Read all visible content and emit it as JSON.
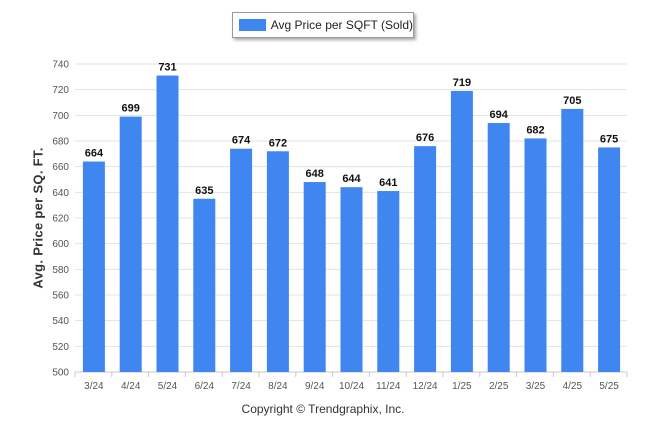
{
  "chart_data": {
    "type": "bar",
    "categories": [
      "3/24",
      "4/24",
      "5/24",
      "6/24",
      "7/24",
      "8/24",
      "9/24",
      "10/24",
      "11/24",
      "12/24",
      "1/25",
      "2/25",
      "3/25",
      "4/25",
      "5/25"
    ],
    "series": [
      {
        "name": "Avg Price per SQFT (Sold)",
        "values": [
          664,
          699,
          731,
          635,
          674,
          672,
          648,
          644,
          641,
          676,
          719,
          694,
          682,
          705,
          675
        ]
      }
    ],
    "title": "",
    "xlabel": "",
    "ylabel": "Avg. Price per SQ. FT.",
    "ylim": [
      500,
      740
    ],
    "yticks": [
      500,
      520,
      540,
      560,
      580,
      600,
      620,
      640,
      660,
      680,
      700,
      720,
      740
    ],
    "grid": true,
    "legend_position": "top-center",
    "data_labels": true
  },
  "colors": {
    "bar": "#3f86f0",
    "grid": "#e3e3e3",
    "axis_text": "#555555"
  },
  "footer": {
    "copyright": "Copyright © Trendgraphix, Inc."
  }
}
